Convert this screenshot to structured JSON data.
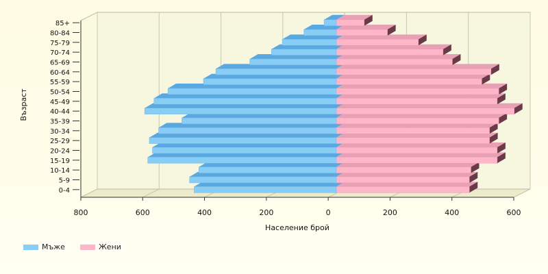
{
  "chart_data": {
    "type": "bar",
    "orientation": "horizontal",
    "style": "population-pyramid-3d",
    "categories": [
      "0-4",
      "5-9",
      "10-14",
      "15-19",
      "20-24",
      "25-29",
      "30-34",
      "35-39",
      "40-44",
      "45-49",
      "50-54",
      "55-59",
      "60-64",
      "65-69",
      "70-74",
      "75-79",
      "80-84",
      "85+"
    ],
    "series": [
      {
        "name": "Мъже",
        "color": "#88cdf6",
        "values": [
          460,
          475,
          445,
          610,
          595,
          605,
          575,
          500,
          620,
          590,
          545,
          430,
          390,
          280,
          210,
          175,
          105,
          40
        ]
      },
      {
        "name": "Жени",
        "color": "#ffb6c8",
        "values": [
          430,
          430,
          435,
          520,
          520,
          495,
          495,
          525,
          575,
          520,
          525,
          470,
          500,
          375,
          345,
          265,
          165,
          90
        ]
      }
    ],
    "xlabel": "Население брой",
    "ylabel": "Възраст",
    "xticks": [
      "800",
      "600",
      "400",
      "200",
      "0",
      "200",
      "400",
      "600"
    ],
    "xlim": [
      -800,
      600
    ],
    "grid": true,
    "legend_position": "bottom-left"
  }
}
